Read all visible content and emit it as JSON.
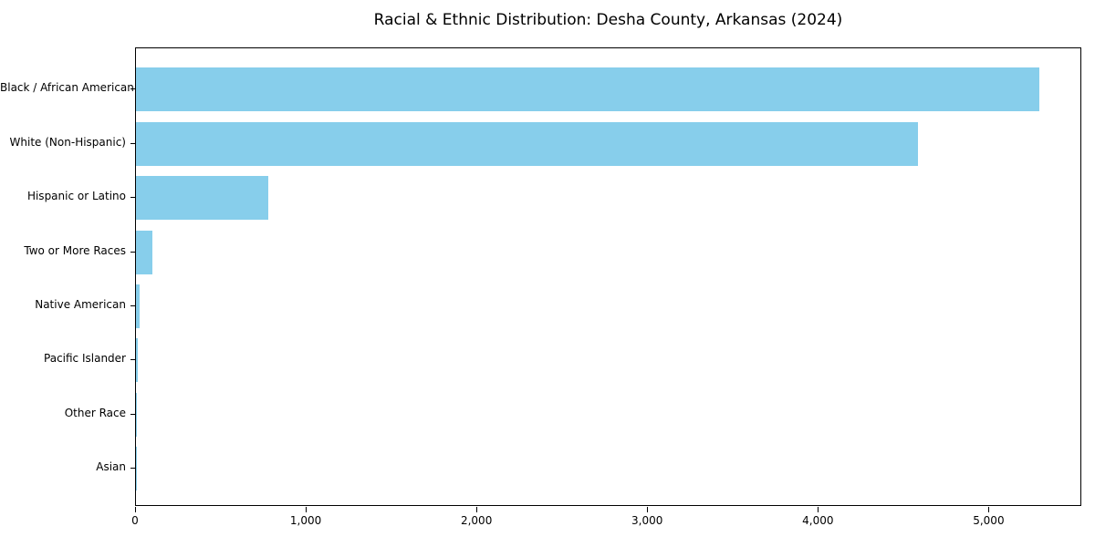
{
  "chart_data": {
    "type": "bar",
    "orientation": "horizontal",
    "title": "Racial & Ethnic Distribution: Desha County, Arkansas (2024)",
    "categories": [
      "Black / African American",
      "White (Non-Hispanic)",
      "Hispanic or Latino",
      "Two or More Races",
      "Native American",
      "Pacific Islander",
      "Other Race",
      "Asian"
    ],
    "values": [
      5290,
      4580,
      775,
      95,
      23,
      12,
      5,
      1
    ],
    "xlabel": "",
    "ylabel": "",
    "xlim": [
      0,
      5543
    ],
    "xticks": [
      0,
      1000,
      2000,
      3000,
      4000,
      5000
    ],
    "xtick_labels": [
      "0",
      "1,000",
      "2,000",
      "3,000",
      "4,000",
      "5,000"
    ],
    "bar_color": "#87CEEB",
    "axis_color": "#000000",
    "text_color": "#000000",
    "grid": false,
    "legend": null,
    "sort_order": "descending"
  }
}
